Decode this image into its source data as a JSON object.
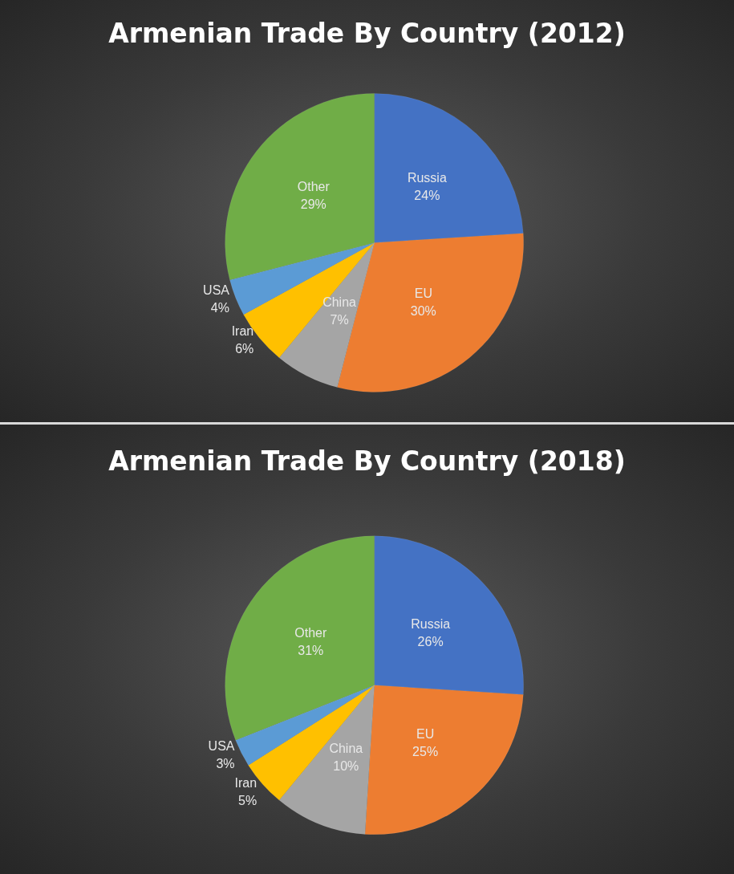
{
  "chart_data": [
    {
      "type": "pie",
      "title": "Armenian Trade By Country (2012)",
      "categories": [
        "Russia",
        "EU",
        "China",
        "Iran",
        "USA",
        "Other"
      ],
      "values": [
        24,
        30,
        7,
        6,
        4,
        29
      ],
      "value_labels": [
        "24%",
        "30%",
        "7%",
        "6%",
        "4%",
        "29%"
      ],
      "colors": [
        "#4472c4",
        "#ed7d31",
        "#a5a5a5",
        "#ffc000",
        "#5b9bd5",
        "#70ad47"
      ],
      "legend": false
    },
    {
      "type": "pie",
      "title": "Armenian Trade By Country (2018)",
      "categories": [
        "Russia",
        "EU",
        "China",
        "Iran",
        "USA",
        "Other"
      ],
      "values": [
        26,
        25,
        10,
        5,
        3,
        31
      ],
      "value_labels": [
        "26%",
        "25%",
        "10%",
        "5%",
        "3%",
        "31%"
      ],
      "colors": [
        "#4472c4",
        "#ed7d31",
        "#a5a5a5",
        "#ffc000",
        "#5b9bd5",
        "#70ad47"
      ],
      "legend": false
    }
  ]
}
